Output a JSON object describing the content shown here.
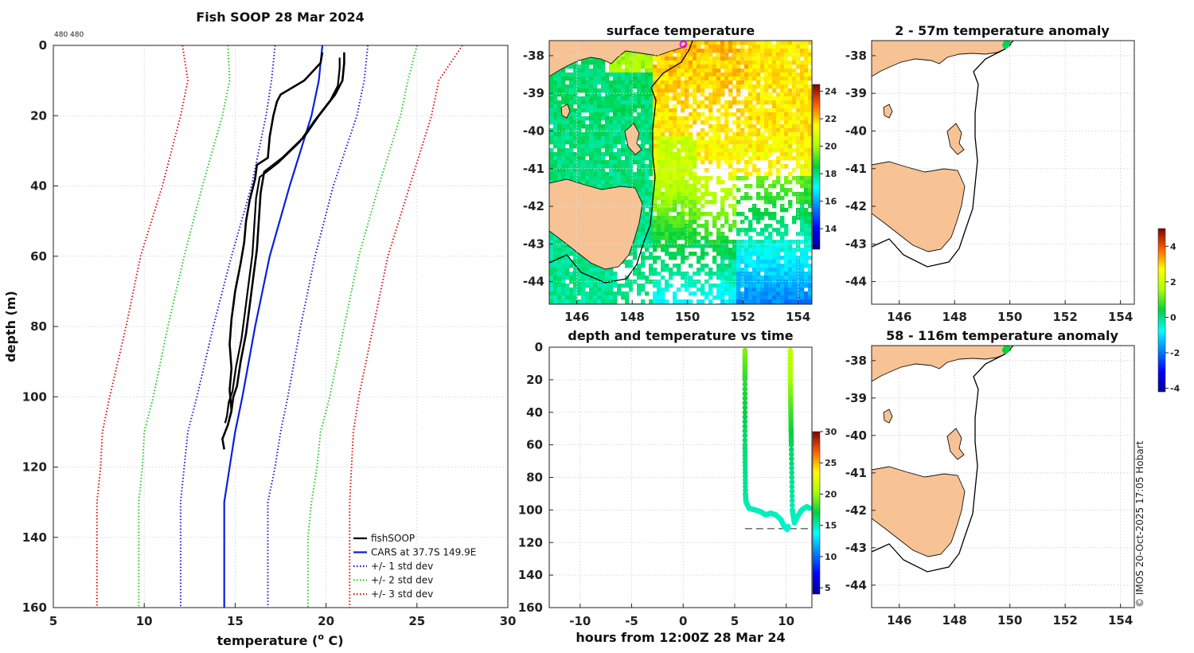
{
  "figure": {
    "id_tag": "480 480",
    "copyright": "© IMOS 20-Oct-2025 17:05 Hobart"
  },
  "chart_data": [
    {
      "type": "line",
      "name": "profile",
      "title": "Fish SOOP 28 Mar 2024",
      "xlabel": "temperature (",
      "xlabel_sup": "o",
      "xlabel_tail": " C)",
      "ylabel": "depth (m)",
      "xlim": [
        5,
        30
      ],
      "ylim": [
        0,
        160
      ],
      "xticks": [
        "5",
        "10",
        "15",
        "20",
        "25",
        "30"
      ],
      "yticks": [
        "0",
        "20",
        "40",
        "60",
        "80",
        "100",
        "120",
        "140",
        "160"
      ],
      "legend": [
        "fishSOOP",
        "CARS at 37.7S 149.9E",
        "+/- 1 std dev",
        "+/- 2 std dev",
        "+/- 3 std dev"
      ],
      "legend_location": "bottom-right",
      "colors": {
        "fishsoop": "#000000",
        "cars": "#0a1fdc",
        "std1": "#1a1adc",
        "std2": "#22cc22",
        "std3": "#dd1111"
      },
      "depth": [
        0,
        10,
        20,
        40,
        60,
        80,
        100,
        110,
        120,
        130,
        140,
        160
      ],
      "cars_mean": [
        19.8,
        19.6,
        19.2,
        18.0,
        16.9,
        16.1,
        15.4,
        15.0,
        14.7,
        14.4,
        14.4,
        14.4
      ],
      "std1_minus": [
        17.2,
        17.0,
        16.7,
        15.9,
        14.8,
        13.8,
        12.9,
        12.4,
        12.2,
        12.0,
        12.0,
        12.0
      ],
      "std1_plus": [
        22.3,
        22.1,
        21.7,
        20.4,
        19.4,
        18.6,
        17.9,
        17.5,
        17.2,
        16.8,
        16.8,
        16.8
      ],
      "std2_minus": [
        14.6,
        14.7,
        14.3,
        13.2,
        12.2,
        11.3,
        10.5,
        10.0,
        9.9,
        9.7,
        9.7,
        9.7
      ],
      "std2_plus": [
        25.0,
        24.5,
        24.1,
        22.9,
        21.8,
        21.0,
        20.2,
        19.7,
        19.5,
        19.2,
        19.0,
        19.0
      ],
      "std3_minus": [
        12.1,
        12.4,
        12.0,
        11.0,
        9.8,
        9.0,
        8.1,
        7.7,
        7.6,
        7.4,
        7.4,
        7.4
      ],
      "std3_plus": [
        27.5,
        26.2,
        25.8,
        24.6,
        23.4,
        22.6,
        21.8,
        21.5,
        21.4,
        21.3,
        21.3,
        21.3
      ],
      "fishsoop_down": {
        "depth": [
          2,
          5,
          10,
          14,
          16,
          20,
          26,
          32,
          34,
          38,
          44,
          50,
          56,
          62,
          70,
          78,
          85,
          92,
          98,
          104,
          108,
          112,
          115
        ],
        "temp": [
          19.8,
          19.7,
          18.8,
          17.5,
          17.3,
          17.1,
          16.9,
          16.8,
          16.2,
          16.1,
          15.8,
          15.6,
          15.5,
          15.3,
          15.0,
          14.8,
          14.7,
          14.8,
          14.7,
          14.8,
          14.6,
          14.3,
          14.4
        ]
      },
      "fishsoop_up": {
        "depth": [
          2,
          5,
          10,
          14,
          20,
          26,
          32,
          36,
          42,
          50,
          58,
          66,
          74,
          82,
          90,
          97,
          100,
          104,
          106
        ],
        "temp": [
          21.0,
          21.0,
          20.9,
          20.5,
          19.6,
          18.8,
          17.6,
          16.6,
          16.4,
          16.3,
          16.2,
          16.0,
          15.8,
          15.6,
          15.3,
          15.1,
          14.9,
          14.8,
          14.7
        ]
      }
    },
    {
      "type": "heatmap",
      "name": "sst_map",
      "title": "surface temperature",
      "xticks": [
        "146",
        "148",
        "150",
        "152",
        "154"
      ],
      "yticks": [
        "-38",
        "-39",
        "-40",
        "-41",
        "-42",
        "-43",
        "-44"
      ],
      "xlim": [
        145,
        154.5
      ],
      "ylim": [
        -44.6,
        -37.6
      ],
      "colorbar": {
        "min": 12.5,
        "max": 24.5,
        "ticks": [
          "14",
          "16",
          "18",
          "20",
          "22",
          "24"
        ]
      },
      "marker": {
        "lon": 149.85,
        "lat": -37.7
      }
    },
    {
      "type": "scatter",
      "name": "depth_time",
      "title": "depth and temperature vs time",
      "xlabel": "hours from 12:00Z 28 Mar 24",
      "xlim": [
        -13,
        12.5
      ],
      "ylim": [
        0,
        160
      ],
      "xticks": [
        "-10",
        "-5",
        "0",
        "5",
        "10"
      ],
      "yticks": [
        "0",
        "20",
        "40",
        "60",
        "80",
        "100",
        "120",
        "140",
        "160"
      ],
      "colorbar": {
        "min": 4,
        "max": 30,
        "ticks": [
          "5",
          "10",
          "15",
          "20",
          "25",
          "30"
        ]
      },
      "bottom_depth": 111.5,
      "cast1": {
        "hours": [
          6.0,
          6.0,
          6.0,
          6.05,
          6.1,
          6.4,
          7.0,
          7.5,
          8.0,
          8.5,
          9.0,
          9.5,
          9.8,
          10.1,
          10.2
        ],
        "depth": [
          2,
          20,
          60,
          90,
          95,
          99,
          100,
          101,
          103,
          102,
          103,
          106,
          110,
          112,
          110
        ],
        "temp": [
          19.5,
          17.8,
          16.2,
          15.5,
          15.2,
          15.0,
          15.0,
          14.9,
          14.9,
          14.9,
          14.8,
          14.7,
          14.6,
          14.5,
          14.5
        ]
      },
      "cast2": {
        "hours": [
          10.4,
          10.4,
          10.45,
          10.5,
          10.6,
          10.8,
          11.1,
          11.5,
          12.0,
          12.3
        ],
        "depth": [
          2,
          20,
          40,
          60,
          100,
          108,
          104,
          100,
          98,
          99
        ],
        "temp": [
          21.0,
          20.2,
          18.2,
          16.5,
          15.0,
          14.8,
          14.8,
          14.9,
          14.9,
          14.9
        ]
      }
    },
    {
      "type": "heatmap",
      "name": "anom_shallow",
      "title": "2 - 57m temperature anomaly",
      "xticks": [
        "146",
        "148",
        "150",
        "152",
        "154"
      ],
      "yticks": [
        "-38",
        "-39",
        "-40",
        "-41",
        "-42",
        "-43",
        "-44"
      ],
      "xlim": [
        145,
        154.5
      ],
      "ylim": [
        -44.6,
        -37.6
      ],
      "points": [
        {
          "lon": 149.85,
          "lat": -37.72,
          "anomaly": 0.2
        },
        {
          "lon": 149.9,
          "lat": -37.65,
          "anomaly": 0.3
        }
      ]
    },
    {
      "type": "heatmap",
      "name": "anom_deep",
      "title": "58 - 116m temperature anomaly",
      "xticks": [
        "146",
        "148",
        "150",
        "152",
        "154"
      ],
      "yticks": [
        "-38",
        "-39",
        "-40",
        "-41",
        "-42",
        "-43",
        "-44"
      ],
      "xlim": [
        145,
        154.5
      ],
      "ylim": [
        -44.6,
        -37.6
      ],
      "points": [
        {
          "lon": 149.85,
          "lat": -37.72,
          "anomaly": 0.4
        },
        {
          "lon": 149.9,
          "lat": -37.65,
          "anomaly": 0.5
        }
      ],
      "colorbar": {
        "min": -4.2,
        "max": 5.0,
        "ticks": [
          "4",
          "2",
          "0",
          "-2",
          "-4"
        ],
        "tick_values": [
          4,
          2,
          0,
          -2,
          -4
        ]
      }
    }
  ]
}
